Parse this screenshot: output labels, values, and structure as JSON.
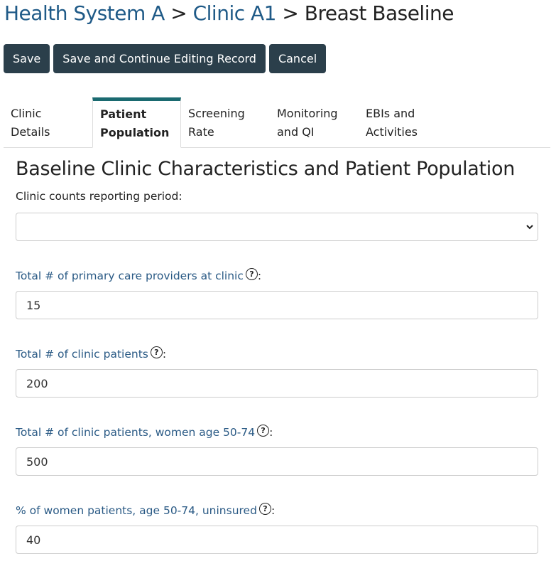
{
  "breadcrumb": {
    "items": [
      "Health System A",
      "Clinic A1"
    ],
    "separator": ">",
    "current": "Breast Baseline"
  },
  "toolbar": {
    "save_label": "Save",
    "save_continue_label": "Save and Continue Editing Record",
    "cancel_label": "Cancel"
  },
  "tabs": [
    {
      "line1": "Clinic",
      "line2": "Details"
    },
    {
      "line1": "Patient",
      "line2": "Population",
      "active": true
    },
    {
      "line1": "Screening",
      "line2": "Rate"
    },
    {
      "line1": "Monitoring",
      "line2": "and QI"
    },
    {
      "line1": "EBIs and",
      "line2": "Activities"
    }
  ],
  "form": {
    "heading": "Baseline Clinic Characteristics and Patient Population",
    "period_label": "Clinic counts reporting period:",
    "period_value": "",
    "fields": [
      {
        "label": "Total # of primary care providers at clinic",
        "value": "15"
      },
      {
        "label": "Total # of clinic patients",
        "value": "200"
      },
      {
        "label": "Total # of clinic patients, women age 50-74",
        "value": "500"
      },
      {
        "label": "% of women patients, age 50-74, uninsured",
        "value": "40"
      }
    ],
    "help_glyph": "?",
    "colon": ":"
  },
  "colors": {
    "link": "#1f5a87",
    "button": "#2b3f4b",
    "active_tab": "#1a6a70"
  }
}
